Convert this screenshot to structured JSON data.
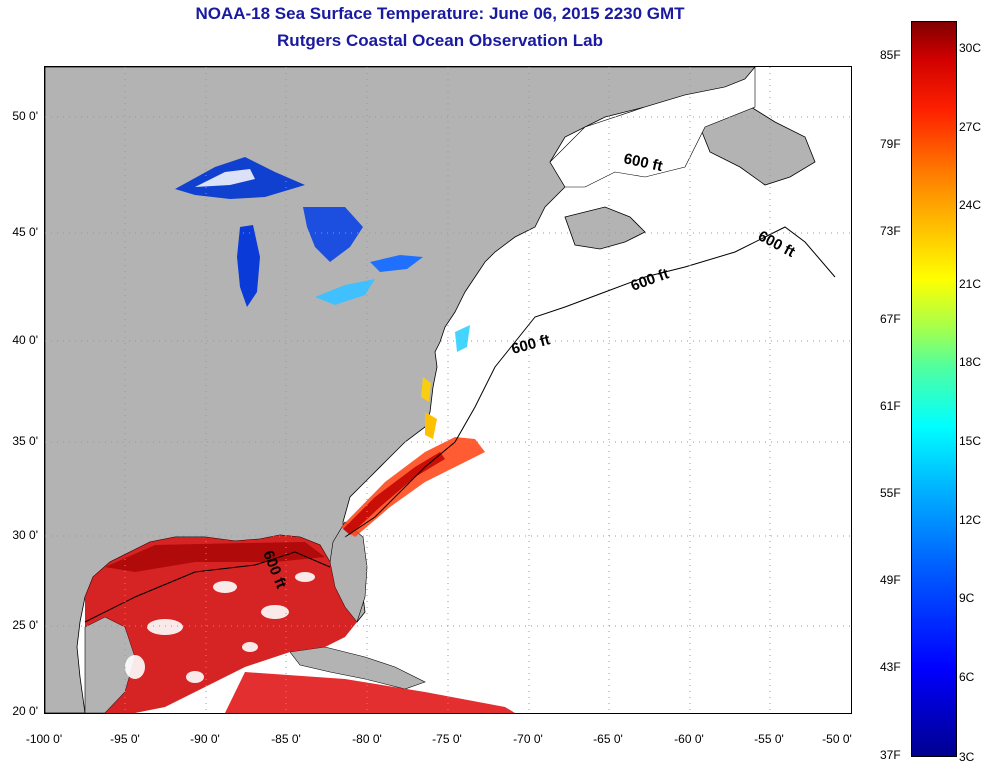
{
  "titles": {
    "line1": "NOAA-18 Sea Surface Temperature:  June 06, 2015 2230 GMT",
    "line2": "Rutgers Coastal Ocean Observation Lab"
  },
  "map": {
    "lon_range": [
      -100,
      -50
    ],
    "lat_range": [
      20,
      53
    ],
    "lat_labels": [
      "50 0'",
      "45 0'",
      "40 0'",
      "35 0'",
      "30 0'",
      "25 0'",
      "20 0'"
    ],
    "lon_labels": [
      "-100 0'",
      "-95 0'",
      "-90 0'",
      "-85 0'",
      "-80 0'",
      "-75 0'",
      "-70 0'",
      "-65 0'",
      "-60 0'",
      "-55 0'",
      "-50 0'"
    ],
    "contour_label": "600 ft",
    "land_color": "#b3b3b3",
    "no_data_color": "#ffffff",
    "gridlines": "dotted"
  },
  "colorbar": {
    "fahrenheit": [
      "85F",
      "79F",
      "73F",
      "67F",
      "61F",
      "55F",
      "49F",
      "43F",
      "37F"
    ],
    "celsius": [
      "30C",
      "27C",
      "24C",
      "21C",
      "18C",
      "15C",
      "12C",
      "9C",
      "6C",
      "3C"
    ],
    "colors": [
      "#00008f",
      "#0000ff",
      "#00b0ff",
      "#00ffff",
      "#a0ff50",
      "#ffff00",
      "#ff8000",
      "#ff2000",
      "#800000"
    ]
  }
}
